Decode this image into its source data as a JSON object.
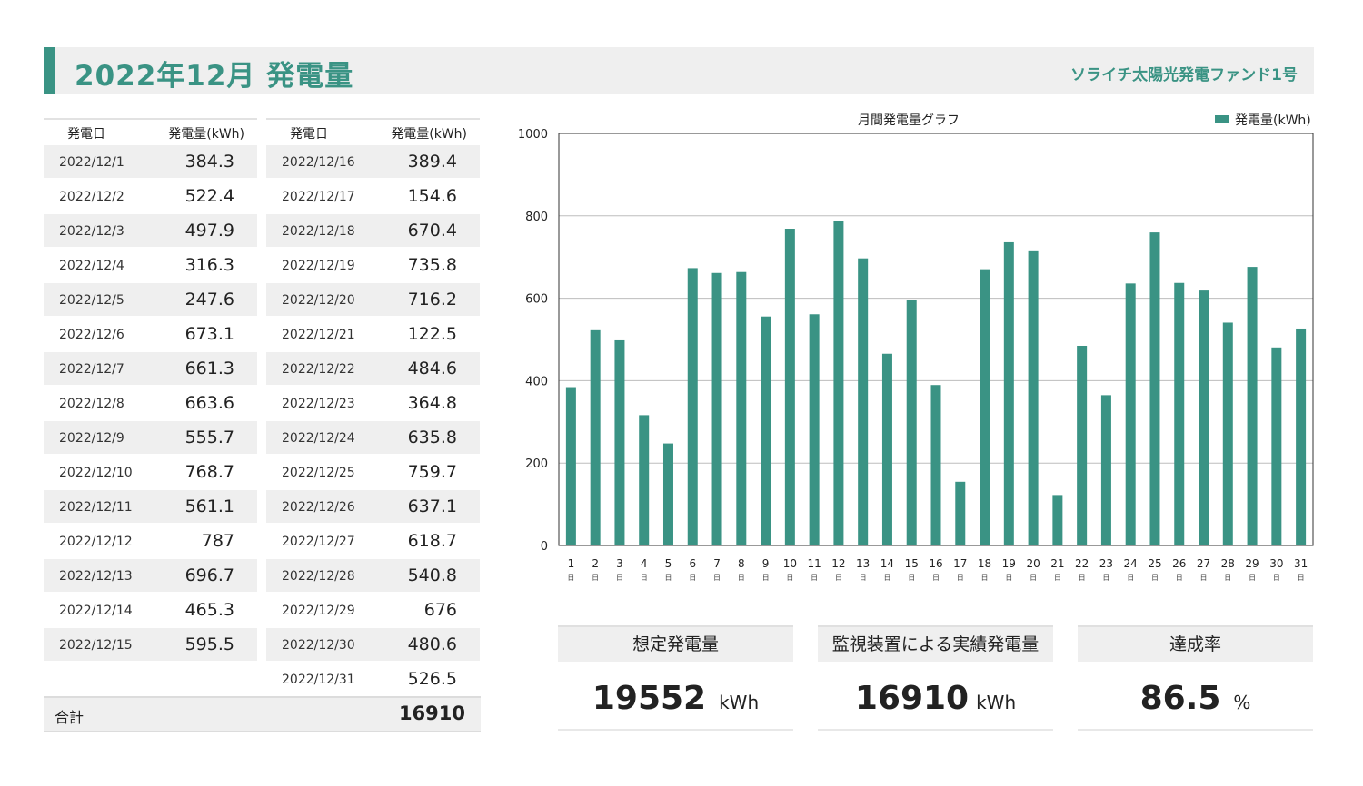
{
  "header": {
    "title": "2022年12月 発電量",
    "fund_name": "ソライチ太陽光発電ファンド1号"
  },
  "table": {
    "date_header": "発電日",
    "value_header": "発電量(kWh)",
    "left_rows": [
      {
        "date": "2022/12/1",
        "value": "384.3"
      },
      {
        "date": "2022/12/2",
        "value": "522.4"
      },
      {
        "date": "2022/12/3",
        "value": "497.9"
      },
      {
        "date": "2022/12/4",
        "value": "316.3"
      },
      {
        "date": "2022/12/5",
        "value": "247.6"
      },
      {
        "date": "2022/12/6",
        "value": "673.1"
      },
      {
        "date": "2022/12/7",
        "value": "661.3"
      },
      {
        "date": "2022/12/8",
        "value": "663.6"
      },
      {
        "date": "2022/12/9",
        "value": "555.7"
      },
      {
        "date": "2022/12/10",
        "value": "768.7"
      },
      {
        "date": "2022/12/11",
        "value": "561.1"
      },
      {
        "date": "2022/12/12",
        "value": "787"
      },
      {
        "date": "2022/12/13",
        "value": "696.7"
      },
      {
        "date": "2022/12/14",
        "value": "465.3"
      },
      {
        "date": "2022/12/15",
        "value": "595.5"
      }
    ],
    "right_rows": [
      {
        "date": "2022/12/16",
        "value": "389.4"
      },
      {
        "date": "2022/12/17",
        "value": "154.6"
      },
      {
        "date": "2022/12/18",
        "value": "670.4"
      },
      {
        "date": "2022/12/19",
        "value": "735.8"
      },
      {
        "date": "2022/12/20",
        "value": "716.2"
      },
      {
        "date": "2022/12/21",
        "value": "122.5"
      },
      {
        "date": "2022/12/22",
        "value": "484.6"
      },
      {
        "date": "2022/12/23",
        "value": "364.8"
      },
      {
        "date": "2022/12/24",
        "value": "635.8"
      },
      {
        "date": "2022/12/25",
        "value": "759.7"
      },
      {
        "date": "2022/12/26",
        "value": "637.1"
      },
      {
        "date": "2022/12/27",
        "value": "618.7"
      },
      {
        "date": "2022/12/28",
        "value": "540.8"
      },
      {
        "date": "2022/12/29",
        "value": "676"
      },
      {
        "date": "2022/12/30",
        "value": "480.6"
      },
      {
        "date": "2022/12/31",
        "value": "526.5"
      }
    ],
    "total_label": "合計",
    "total_value": "16910"
  },
  "chart_data": {
    "type": "bar",
    "title": "月間発電量グラフ",
    "series_name": "発電量(kWh)",
    "categories": [
      "1",
      "2",
      "3",
      "4",
      "5",
      "6",
      "7",
      "8",
      "9",
      "10",
      "11",
      "12",
      "13",
      "14",
      "15",
      "16",
      "17",
      "18",
      "19",
      "20",
      "21",
      "22",
      "23",
      "24",
      "25",
      "26",
      "27",
      "28",
      "29",
      "30",
      "31"
    ],
    "category_suffix": "日",
    "values": [
      384.3,
      522.4,
      497.9,
      316.3,
      247.6,
      673.1,
      661.3,
      663.6,
      555.7,
      768.7,
      561.1,
      787,
      696.7,
      465.3,
      595.5,
      389.4,
      154.6,
      670.4,
      735.8,
      716.2,
      122.5,
      484.6,
      364.8,
      635.8,
      759.7,
      637.1,
      618.7,
      540.8,
      676,
      480.6,
      526.5
    ],
    "ylim": [
      0,
      1000
    ],
    "yticks": [
      0,
      200,
      400,
      600,
      800,
      1000
    ],
    "legend_position": "top-right",
    "grid": true,
    "color": "#3a9384"
  },
  "summary": {
    "expected": {
      "label": "想定発電量",
      "value": "19552",
      "unit": "kWh"
    },
    "actual": {
      "label": "監視装置による実績発電量",
      "value": "16910",
      "unit": "kWh"
    },
    "rate": {
      "label": "達成率",
      "value": "86.5",
      "unit": "%"
    }
  }
}
